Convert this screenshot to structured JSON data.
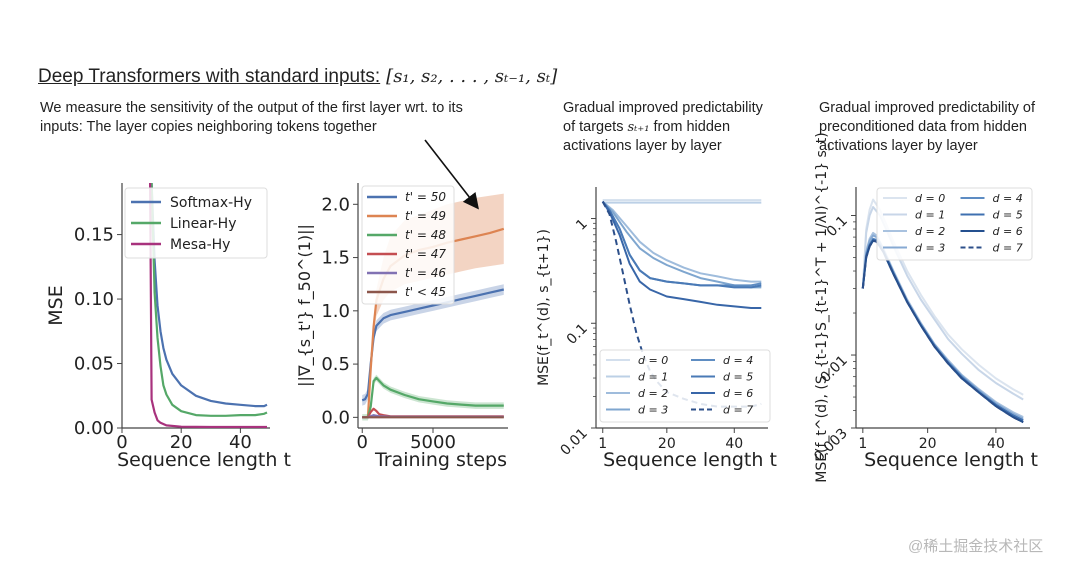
{
  "header": {
    "title_text": "Deep Transformers with standard  inputs:",
    "title_math": "[s₁, s₂, . . . , sₜ₋₁, sₜ]"
  },
  "descriptions": {
    "first_layer": "We measure the sensitivity of the output of the  first layer wrt. to its inputs: The layer copies neighboring tokens together",
    "targets_pre": "Gradual improved predictability of targets ",
    "targets_math": "sₜ₊₁",
    "targets_post": " from hidden activations layer by layer",
    "preconditioned": "Gradual improved predictability of preconditioned data from hidden activations layer by layer"
  },
  "watermark": "@稀土掘金技术社区",
  "chart_data": [
    {
      "id": "mse-vs-seq",
      "type": "line",
      "title": "",
      "xlabel": "Sequence length t",
      "ylabel": "MSE",
      "xlim": [
        0,
        50
      ],
      "ylim": [
        0,
        0.19
      ],
      "xticks": [
        0,
        20,
        40
      ],
      "yticks": [
        0.0,
        0.05,
        0.1,
        0.15
      ],
      "ytick_labels": [
        "0.00",
        "0.05",
        "0.10",
        "0.15"
      ],
      "legend": "top-right",
      "series": [
        {
          "name": "Softmax-Hy",
          "color": "#4c72b0",
          "x": [
            10,
            11,
            12,
            13,
            14,
            15,
            17,
            20,
            25,
            30,
            35,
            40,
            45,
            48,
            49
          ],
          "y": [
            0.19,
            0.13,
            0.095,
            0.075,
            0.062,
            0.053,
            0.042,
            0.033,
            0.025,
            0.021,
            0.019,
            0.018,
            0.017,
            0.017,
            0.018
          ]
        },
        {
          "name": "Linear-Hy",
          "color": "#55a868",
          "x": [
            10,
            11,
            12,
            13,
            14,
            15,
            17,
            20,
            25,
            30,
            35,
            40,
            45,
            48,
            49
          ],
          "y": [
            0.19,
            0.105,
            0.07,
            0.048,
            0.033,
            0.026,
            0.018,
            0.013,
            0.01,
            0.0095,
            0.0095,
            0.01,
            0.01,
            0.011,
            0.012
          ]
        },
        {
          "name": "Mesa-Hy",
          "color": "#a8327d",
          "x": [
            9.5,
            10,
            11,
            12,
            13,
            15,
            20,
            30,
            40,
            49
          ],
          "y": [
            0.19,
            0.022,
            0.012,
            0.006,
            0.004,
            0.002,
            0.001,
            0.0008,
            0.0008,
            0.0008
          ]
        }
      ]
    },
    {
      "id": "grad-norm-vs-steps",
      "type": "line",
      "title": "",
      "xlabel": "Training steps",
      "ylabel": "||∇_{s_t'} f_50^(1)||",
      "xlim": [
        -300,
        10300
      ],
      "ylim": [
        -0.1,
        2.2
      ],
      "xticks": [
        0,
        5000
      ],
      "yticks": [
        0.0,
        0.5,
        1.0,
        1.5,
        2.0
      ],
      "ytick_labels": [
        "0.0",
        "0.5",
        "1.0",
        "1.5",
        "2.0"
      ],
      "legend": "top-left",
      "annotation": "arrow pointing to the t'=49 curve",
      "series": [
        {
          "name": "t' = 50",
          "color": "#4c72b0",
          "band": 0.05,
          "x": [
            0,
            200,
            400,
            600,
            800,
            1000,
            1500,
            2000,
            3000,
            4000,
            5000,
            6000,
            7000,
            8000,
            9000,
            10000
          ],
          "y": [
            0.16,
            0.17,
            0.22,
            0.5,
            0.75,
            0.86,
            0.93,
            0.96,
            0.99,
            1.02,
            1.05,
            1.08,
            1.11,
            1.14,
            1.17,
            1.2
          ]
        },
        {
          "name": "t' = 49",
          "color": "#dd8452",
          "band_lo": [
            0.0,
            0.0,
            0.0,
            0.4,
            0.75,
            0.95,
            1.1,
            1.18,
            1.25,
            1.28,
            1.31,
            1.34,
            1.37,
            1.4,
            1.42,
            1.44
          ],
          "band_hi": [
            0.0,
            0.0,
            0.0,
            0.5,
            0.9,
            1.2,
            1.5,
            1.7,
            1.85,
            1.9,
            1.95,
            2.0,
            2.03,
            2.06,
            2.08,
            2.1
          ],
          "x": [
            0,
            200,
            400,
            600,
            800,
            1000,
            1500,
            2000,
            3000,
            4000,
            5000,
            6000,
            7000,
            8000,
            9000,
            10000
          ],
          "y": [
            0.0,
            0.0,
            0.0,
            0.45,
            0.85,
            1.1,
            1.3,
            1.42,
            1.52,
            1.57,
            1.6,
            1.64,
            1.67,
            1.7,
            1.73,
            1.77
          ]
        },
        {
          "name": "t' = 48",
          "color": "#55a868",
          "band": 0.03,
          "x": [
            0,
            200,
            400,
            600,
            800,
            1000,
            1500,
            2000,
            3000,
            4000,
            5000,
            6000,
            7000,
            8000,
            9000,
            10000
          ],
          "y": [
            0.0,
            0.0,
            0.0,
            0.1,
            0.34,
            0.37,
            0.3,
            0.26,
            0.21,
            0.17,
            0.15,
            0.13,
            0.12,
            0.11,
            0.11,
            0.11
          ]
        },
        {
          "name": "t' = 47",
          "color": "#c44e52",
          "x": [
            0,
            400,
            600,
            800,
            1000,
            1200,
            1500,
            2000,
            5000,
            10000
          ],
          "y": [
            0.0,
            0.0,
            0.05,
            0.08,
            0.06,
            0.03,
            0.02,
            0.01,
            0.01,
            0.01
          ]
        },
        {
          "name": "t' = 46",
          "color": "#8172b3",
          "x": [
            0,
            400,
            800,
            1200,
            2000,
            10000
          ],
          "y": [
            0.0,
            0.0,
            0.02,
            0.01,
            0.005,
            0.005
          ]
        },
        {
          "name": "t' < 45",
          "color": "#8c564b",
          "x": [
            0,
            10000
          ],
          "y": [
            0.0,
            0.0
          ]
        }
      ]
    },
    {
      "id": "target-predictability",
      "type": "line",
      "yscale": "log",
      "title": "Gradual improved predictability of targets s_{t+1} from hidden activations layer by layer",
      "xlabel": "Sequence length t",
      "ylabel": "MSE(f_t^(d), s_{t+1})",
      "xlim": [
        -1,
        50
      ],
      "ylim": [
        0.01,
        2.0
      ],
      "xticks": [
        1,
        20,
        40
      ],
      "yticks": [
        0.01,
        0.1,
        1
      ],
      "ytick_labels": [
        "0.01",
        "0.1",
        "1"
      ],
      "legend": "lower-left",
      "legend_columns": 2,
      "series": [
        {
          "name": "d = 0",
          "color": "#d3dfed",
          "dash": false,
          "x": [
            1,
            48
          ],
          "y": [
            1.5,
            1.5
          ]
        },
        {
          "name": "d = 1",
          "color": "#bcd0e6",
          "dash": false,
          "x": [
            1,
            48
          ],
          "y": [
            1.42,
            1.42
          ]
        },
        {
          "name": "d = 2",
          "color": "#9fbcdc",
          "dash": false,
          "x": [
            1,
            4,
            8,
            12,
            16,
            20,
            25,
            30,
            35,
            40,
            45,
            48
          ],
          "y": [
            1.45,
            1.2,
            0.85,
            0.6,
            0.47,
            0.4,
            0.34,
            0.3,
            0.28,
            0.26,
            0.25,
            0.25
          ]
        },
        {
          "name": "d = 3",
          "color": "#7fa6cf",
          "dash": false,
          "x": [
            1,
            4,
            8,
            12,
            16,
            20,
            25,
            30,
            35,
            40,
            45,
            48
          ],
          "y": [
            1.45,
            1.15,
            0.75,
            0.52,
            0.42,
            0.36,
            0.31,
            0.27,
            0.25,
            0.23,
            0.22,
            0.22
          ]
        },
        {
          "name": "d = 4",
          "color": "#5f8dc2",
          "dash": false,
          "x": [
            1,
            3,
            6,
            9,
            12,
            15,
            20,
            25,
            30,
            35,
            40,
            45,
            48
          ],
          "y": [
            1.45,
            1.2,
            0.8,
            0.45,
            0.32,
            0.27,
            0.25,
            0.24,
            0.23,
            0.23,
            0.23,
            0.23,
            0.24
          ]
        },
        {
          "name": "d = 5",
          "color": "#4a7ab6",
          "dash": false,
          "x": [
            1,
            3,
            6,
            9,
            12,
            15,
            20,
            25,
            30,
            35,
            40,
            45,
            48
          ],
          "y": [
            1.45,
            1.2,
            0.8,
            0.45,
            0.32,
            0.27,
            0.25,
            0.24,
            0.23,
            0.23,
            0.22,
            0.22,
            0.23
          ]
        },
        {
          "name": "d = 6",
          "color": "#3866a8",
          "dash": false,
          "x": [
            1,
            3,
            6,
            9,
            12,
            15,
            20,
            25,
            30,
            35,
            40,
            45,
            48
          ],
          "y": [
            1.45,
            1.15,
            0.7,
            0.37,
            0.25,
            0.21,
            0.18,
            0.17,
            0.16,
            0.15,
            0.145,
            0.14,
            0.14
          ]
        },
        {
          "name": "d = 7",
          "color": "#2c4f8a",
          "dash": true,
          "x": [
            1,
            3,
            5,
            7,
            9,
            11,
            13,
            15,
            17,
            20,
            25,
            30,
            35,
            40,
            45,
            48
          ],
          "y": [
            1.45,
            1.1,
            0.6,
            0.3,
            0.15,
            0.08,
            0.05,
            0.035,
            0.028,
            0.022,
            0.019,
            0.017,
            0.016,
            0.016,
            0.016,
            0.017
          ]
        }
      ]
    },
    {
      "id": "preconditioned-predictability",
      "type": "line",
      "yscale": "log",
      "title": "Gradual improved predictability of preconditioned data from hidden activations layer by layer",
      "xlabel": "Sequence length t",
      "ylabel": "MSE(f_t^(d), (S_{t-1}S_{t-1}^T + 1/λI)^{-1} s_t)",
      "xlim": [
        -1,
        50
      ],
      "ylim": [
        0.003,
        0.16
      ],
      "xticks": [
        1,
        20,
        40
      ],
      "yticks": [
        0.003,
        0.01,
        0.1
      ],
      "ytick_labels": [
        "0.003",
        "0.01",
        "0.1"
      ],
      "legend": "top-right",
      "legend_columns": 2,
      "series": [
        {
          "name": "d = 0",
          "color": "#dbe4ef",
          "dash": false,
          "x": [
            1,
            2,
            3,
            4,
            6,
            8,
            10,
            14,
            18,
            22,
            26,
            30,
            35,
            40,
            45,
            48
          ],
          "y": [
            0.03,
            0.08,
            0.11,
            0.13,
            0.11,
            0.085,
            0.065,
            0.04,
            0.027,
            0.019,
            0.014,
            0.011,
            0.0085,
            0.0068,
            0.0057,
            0.0052
          ]
        },
        {
          "name": "d = 1",
          "color": "#c8d6e8",
          "dash": false,
          "x": [
            1,
            2,
            3,
            4,
            6,
            8,
            10,
            14,
            18,
            22,
            26,
            30,
            35,
            40,
            45,
            48
          ],
          "y": [
            0.03,
            0.075,
            0.1,
            0.115,
            0.1,
            0.078,
            0.06,
            0.037,
            0.025,
            0.018,
            0.013,
            0.0102,
            0.0078,
            0.0063,
            0.0053,
            0.0048
          ]
        },
        {
          "name": "d = 2",
          "color": "#a9c2df",
          "dash": false,
          "x": [
            1,
            2,
            3,
            4,
            5,
            7,
            10,
            14,
            18,
            22,
            26,
            30,
            35,
            40,
            45,
            48
          ],
          "y": [
            0.03,
            0.055,
            0.068,
            0.075,
            0.072,
            0.058,
            0.04,
            0.025,
            0.017,
            0.012,
            0.0092,
            0.0072,
            0.0057,
            0.0046,
            0.0039,
            0.0036
          ]
        },
        {
          "name": "d = 3",
          "color": "#87aad3",
          "dash": false,
          "x": [
            1,
            2,
            3,
            4,
            5,
            7,
            10,
            14,
            18,
            22,
            26,
            30,
            35,
            40,
            45,
            48
          ],
          "y": [
            0.03,
            0.054,
            0.066,
            0.072,
            0.07,
            0.057,
            0.039,
            0.0245,
            0.0168,
            0.0119,
            0.009,
            0.0071,
            0.0056,
            0.0045,
            0.0038,
            0.0035
          ]
        },
        {
          "name": "d = 4",
          "color": "#5d8cc3",
          "dash": false,
          "x": [
            1,
            2,
            3,
            4,
            5,
            7,
            10,
            14,
            18,
            22,
            26,
            30,
            35,
            40,
            45,
            48
          ],
          "y": [
            0.03,
            0.052,
            0.062,
            0.068,
            0.067,
            0.056,
            0.039,
            0.0242,
            0.0165,
            0.0117,
            0.0089,
            0.007,
            0.0055,
            0.0044,
            0.0037,
            0.0034
          ]
        },
        {
          "name": "d = 5",
          "color": "#3f70b0",
          "dash": false,
          "x": [
            1,
            2,
            3,
            4,
            5,
            7,
            10,
            14,
            18,
            22,
            26,
            30,
            35,
            40,
            45,
            48
          ],
          "y": [
            0.03,
            0.051,
            0.061,
            0.067,
            0.066,
            0.055,
            0.038,
            0.024,
            0.0164,
            0.0116,
            0.0088,
            0.0069,
            0.0054,
            0.0044,
            0.0037,
            0.0034
          ]
        },
        {
          "name": "d = 6",
          "color": "#24508f",
          "dash": false,
          "x": [
            1,
            2,
            3,
            4,
            5,
            7,
            10,
            14,
            18,
            22,
            26,
            30,
            35,
            40,
            45,
            48
          ],
          "y": [
            0.03,
            0.05,
            0.06,
            0.066,
            0.065,
            0.055,
            0.038,
            0.024,
            0.0163,
            0.0115,
            0.0087,
            0.0068,
            0.0054,
            0.0043,
            0.0036,
            0.0033
          ]
        },
        {
          "name": "d = 7",
          "color": "#2c4f8a",
          "dash": true,
          "x": [
            1,
            2,
            3,
            4,
            5,
            7,
            10,
            14,
            18,
            22,
            26,
            30,
            35,
            40,
            45,
            48
          ],
          "y": [
            0.03,
            0.05,
            0.06,
            0.066,
            0.065,
            0.055,
            0.038,
            0.024,
            0.0163,
            0.0115,
            0.0087,
            0.0068,
            0.0054,
            0.0043,
            0.0036,
            0.0033
          ]
        }
      ]
    }
  ]
}
